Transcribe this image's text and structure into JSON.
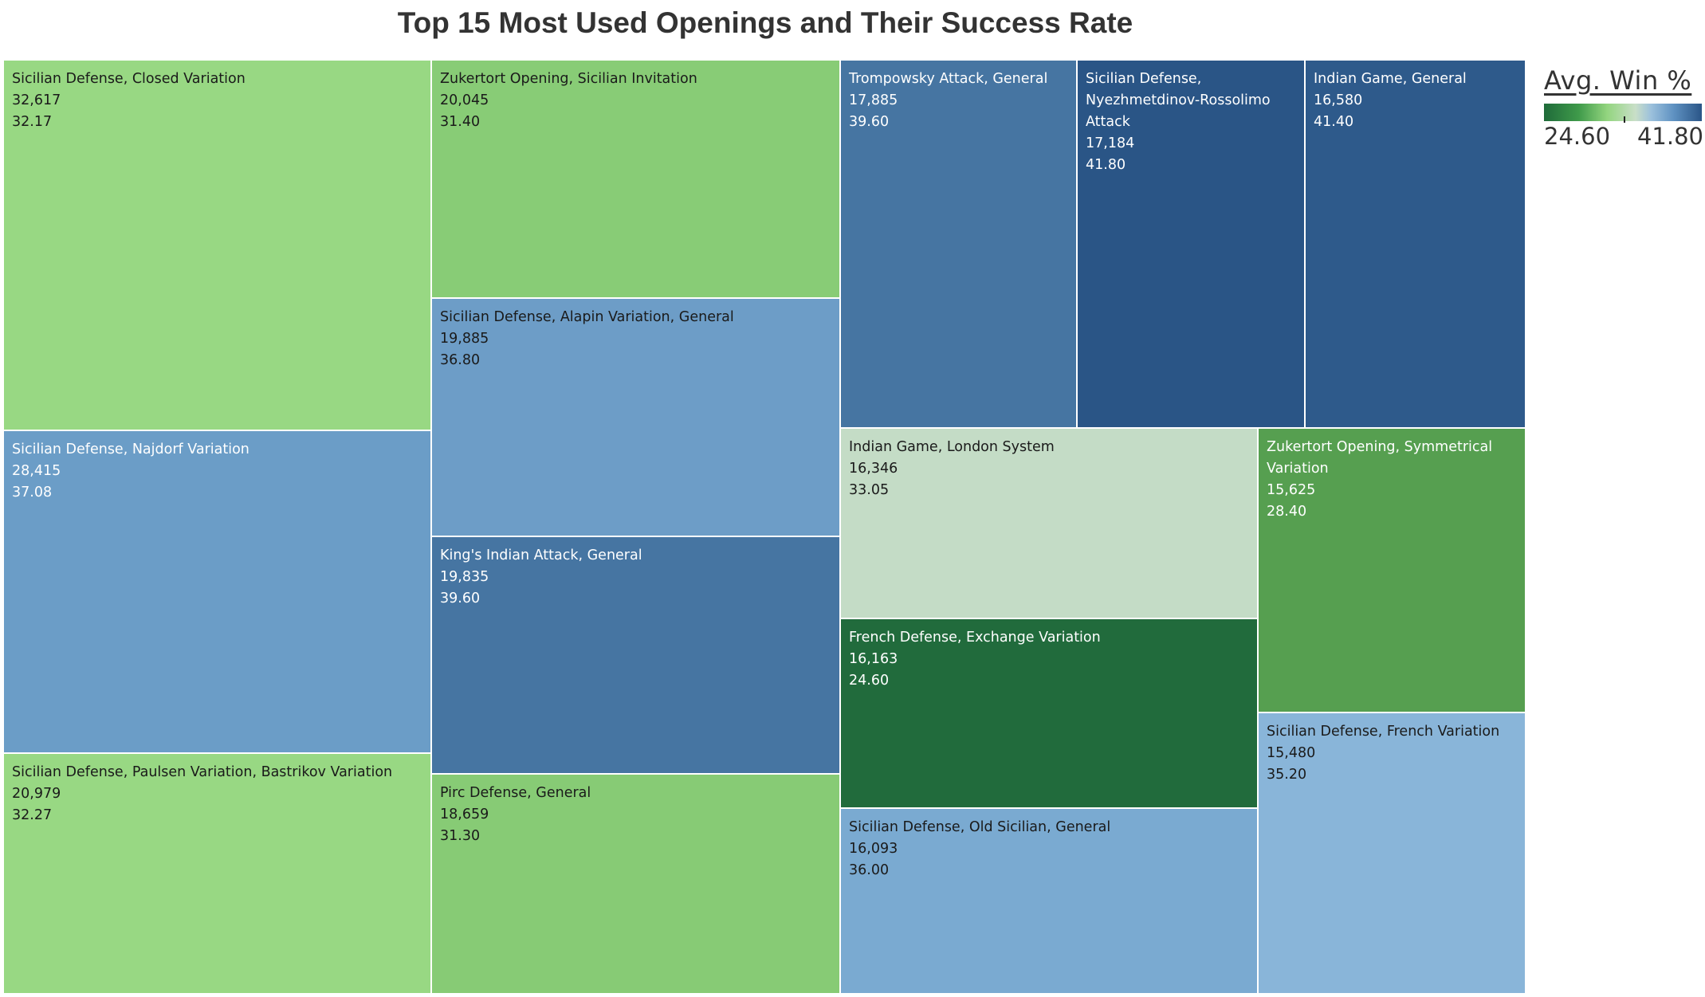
{
  "chart_data": {
    "type": "treemap",
    "title": "Top 15 Most Used Openings and Their Success Rate",
    "size_measure": "games played",
    "color_measure": "Avg. Win %",
    "items": [
      {
        "name": "Sicilian Defense, Closed Variation",
        "count": "32,617",
        "win": "32.17",
        "color": "#98d883",
        "text": "#1a1a1a"
      },
      {
        "name": "Sicilian Defense, Najdorf Variation",
        "count": "28,415",
        "win": "37.08",
        "color": "#6b9dc7",
        "text": "#ffffff"
      },
      {
        "name": "Sicilian Defense, Paulsen Variation, Bastrikov Variation",
        "count": "20,979",
        "win": "32.27",
        "color": "#98d883",
        "text": "#1a1a1a"
      },
      {
        "name": "Zukertort Opening, Sicilian Invitation",
        "count": "20,045",
        "win": "31.40",
        "color": "#88cc76",
        "text": "#1a1a1a"
      },
      {
        "name": "Sicilian Defense, Alapin Variation, General",
        "count": "19,885",
        "win": "36.80",
        "color": "#6d9dc7",
        "text": "#1a1a1a"
      },
      {
        "name": "King's Indian Attack, General",
        "count": "19,835",
        "win": "39.60",
        "color": "#4675a2",
        "text": "#ffffff"
      },
      {
        "name": "Pirc Defense, General",
        "count": "18,659",
        "win": "31.30",
        "color": "#87cb75",
        "text": "#1a1a1a"
      },
      {
        "name": "Trompowsky Attack, General",
        "count": "17,885",
        "win": "39.60",
        "color": "#4675a2",
        "text": "#ffffff"
      },
      {
        "name": "Sicilian Defense, Nyezhmetdinov-Rossolimo Attack",
        "count": "17,184",
        "win": "41.80",
        "color": "#2a5586",
        "text": "#ffffff"
      },
      {
        "name": "Indian Game, General",
        "count": "16,580",
        "win": "41.40",
        "color": "#2e5a8b",
        "text": "#ffffff"
      },
      {
        "name": "Indian Game, London System",
        "count": "16,346",
        "win": "33.05",
        "color": "#c4dcc6",
        "text": "#1a1a1a"
      },
      {
        "name": "Zukertort Opening, Symmetrical Variation",
        "count": "15,625",
        "win": "28.40",
        "color": "#569f50",
        "text": "#ffffff"
      },
      {
        "name": "French Defense, Exchange Variation",
        "count": "16,163",
        "win": "24.60",
        "color": "#216b3c",
        "text": "#ffffff"
      },
      {
        "name": "Sicilian Defense, Old Sicilian, General",
        "count": "16,093",
        "win": "36.00",
        "color": "#7aaad1",
        "text": "#1a1a1a"
      },
      {
        "name": "Sicilian Defense, French Variation",
        "count": "15,480",
        "win": "35.20",
        "color": "#89b5d9",
        "text": "#1a1a1a"
      }
    ],
    "legend": {
      "title": "Avg. Win %",
      "min_label": "24.60",
      "max_label": "41.80"
    }
  }
}
